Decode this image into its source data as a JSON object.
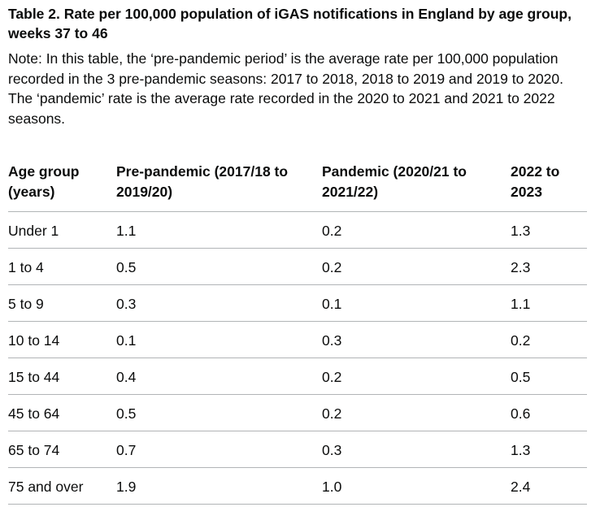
{
  "caption": {
    "title": "Table 2. Rate per 100,000 population of iGAS notifications in England by age group, weeks 37 to 46",
    "note": "Note: In this table, the ‘pre-pandemic period’ is the average rate per 100,000 population recorded in the 3 pre-pandemic seasons: 2017 to 2018, 2018 to 2019 and 2019 to 2020. The ‘pandemic’ rate is the average rate recorded in the 2020 to 2021 and 2021 to 2022 seasons."
  },
  "table": {
    "headers": [
      "Age group (years)",
      "Pre-pandemic (2017/18 to 2019/20)",
      "Pandemic (2020/21 to 2021/22)",
      "2022 to 2023"
    ],
    "rows": [
      [
        "Under 1",
        "1.1",
        "0.2",
        "1.3"
      ],
      [
        "1 to 4",
        "0.5",
        "0.2",
        "2.3"
      ],
      [
        "5 to 9",
        "0.3",
        "0.1",
        "1.1"
      ],
      [
        "10 to 14",
        "0.1",
        "0.3",
        "0.2"
      ],
      [
        "15 to 44",
        "0.4",
        "0.2",
        "0.5"
      ],
      [
        "45 to 64",
        "0.5",
        "0.2",
        "0.6"
      ],
      [
        "65 to 74",
        "0.7",
        "0.3",
        "1.3"
      ],
      [
        "75 and over",
        "1.9",
        "1.0",
        "2.4"
      ]
    ]
  }
}
